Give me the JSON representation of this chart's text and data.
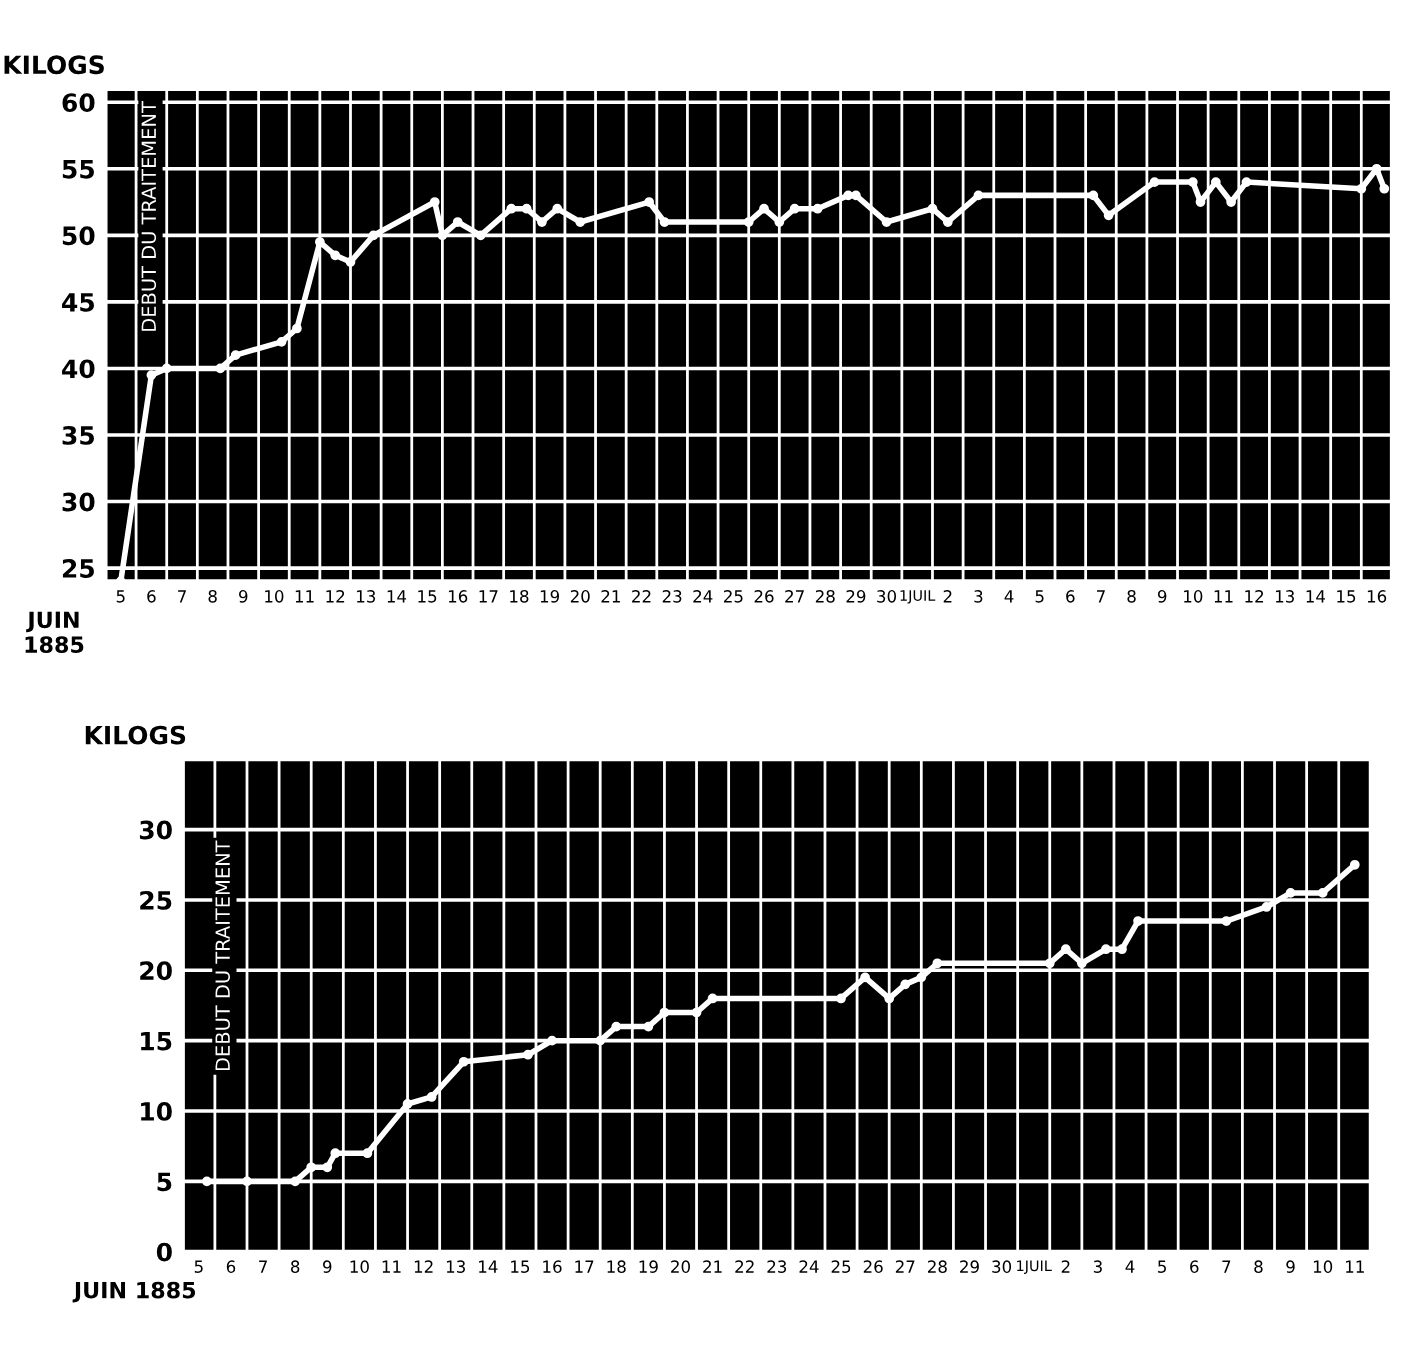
{
  "chart_data": [
    {
      "type": "line",
      "xlabel": "JUIN\n1885",
      "ylabel": "KILOGS",
      "annotations": [
        "DEBUT DU TRAITEMENT"
      ],
      "grid": true,
      "marker": "circle",
      "line_style": "solid",
      "x": [
        "1885-06-05T12:00",
        "1885-06-06T12:00",
        "1885-06-07T00:00",
        "1885-06-08T18:00",
        "1885-06-09T06:00",
        "1885-06-10T18:00",
        "1885-06-11T06:00",
        "1885-06-12T00:00",
        "1885-06-12T12:00",
        "1885-06-13T00:00",
        "1885-06-13T18:00",
        "1885-06-15T18:00",
        "1885-06-16T00:00",
        "1885-06-16T12:00",
        "1885-06-17T06:00",
        "1885-06-18T06:00",
        "1885-06-18T18:00",
        "1885-06-19T06:00",
        "1885-06-19T18:00",
        "1885-06-20T12:00",
        "1885-06-22T18:00",
        "1885-06-23T06:00",
        "1885-06-26T00:00",
        "1885-06-26T12:00",
        "1885-06-27T00:00",
        "1885-06-27T12:00",
        "1885-06-28T06:00",
        "1885-06-29T06:00",
        "1885-06-29T12:00",
        "1885-06-30T12:00",
        "1885-07-02T00:00",
        "1885-07-02T12:00",
        "1885-07-03T12:00",
        "1885-07-07T06:00",
        "1885-07-07T18:00",
        "1885-07-09T06:00",
        "1885-07-10T12:00",
        "1885-07-10T18:00",
        "1885-07-11T06:00",
        "1885-07-11T18:00",
        "1885-07-12T06:00",
        "1885-07-16T00:00",
        "1885-07-16T12:00",
        "1885-07-16T18:00"
      ],
      "series": [
        {
          "color": "#ffffff",
          "values": [
            24,
            39.5,
            40,
            40,
            41,
            42,
            43,
            49.5,
            48.5,
            48,
            50,
            52.5,
            50,
            51,
            50,
            52,
            52,
            51,
            52,
            51,
            52.5,
            51,
            51,
            52,
            51,
            52,
            52,
            53,
            53,
            51,
            52,
            51,
            53,
            53,
            51.5,
            54,
            54,
            52.5,
            54,
            52.5,
            54,
            53.5,
            55,
            53.5
          ]
        }
      ],
      "xlim": [
        "1885-06-05T00:00",
        "1885-07-17T00:00"
      ],
      "ylim": [
        24,
        61
      ],
      "yticks": [
        25,
        30,
        35,
        40,
        45,
        50,
        55,
        60
      ],
      "xticks": [
        {
          "value": "1885-06-05T12:00",
          "label": "5"
        },
        {
          "value": "1885-06-06T12:00",
          "label": "6"
        },
        {
          "value": "1885-06-07T12:00",
          "label": "7"
        },
        {
          "value": "1885-06-08T12:00",
          "label": "8"
        },
        {
          "value": "1885-06-09T12:00",
          "label": "9"
        },
        {
          "value": "1885-06-10T12:00",
          "label": "10"
        },
        {
          "value": "1885-06-11T12:00",
          "label": "11"
        },
        {
          "value": "1885-06-12T12:00",
          "label": "12"
        },
        {
          "value": "1885-06-13T12:00",
          "label": "13"
        },
        {
          "value": "1885-06-14T12:00",
          "label": "14"
        },
        {
          "value": "1885-06-15T12:00",
          "label": "15"
        },
        {
          "value": "1885-06-16T12:00",
          "label": "16"
        },
        {
          "value": "1885-06-17T12:00",
          "label": "17"
        },
        {
          "value": "1885-06-18T12:00",
          "label": "18"
        },
        {
          "value": "1885-06-19T12:00",
          "label": "19"
        },
        {
          "value": "1885-06-20T12:00",
          "label": "20"
        },
        {
          "value": "1885-06-21T12:00",
          "label": "21"
        },
        {
          "value": "1885-06-22T12:00",
          "label": "22"
        },
        {
          "value": "1885-06-23T12:00",
          "label": "23"
        },
        {
          "value": "1885-06-24T12:00",
          "label": "24"
        },
        {
          "value": "1885-06-25T12:00",
          "label": "25"
        },
        {
          "value": "1885-06-26T12:00",
          "label": "26"
        },
        {
          "value": "1885-06-27T12:00",
          "label": "27"
        },
        {
          "value": "1885-06-28T12:00",
          "label": "28"
        },
        {
          "value": "1885-06-29T12:00",
          "label": "29"
        },
        {
          "value": "1885-06-30T12:00",
          "label": "30"
        },
        {
          "value": "1885-07-01T12:00",
          "label": "1JUIL"
        },
        {
          "value": "1885-07-02T12:00",
          "label": "2"
        },
        {
          "value": "1885-07-03T12:00",
          "label": "3"
        },
        {
          "value": "1885-07-04T12:00",
          "label": "4"
        },
        {
          "value": "1885-07-05T12:00",
          "label": "5"
        },
        {
          "value": "1885-07-06T12:00",
          "label": "6"
        },
        {
          "value": "1885-07-07T12:00",
          "label": "7"
        },
        {
          "value": "1885-07-08T12:00",
          "label": "8"
        },
        {
          "value": "1885-07-09T12:00",
          "label": "9"
        },
        {
          "value": "1885-07-10T12:00",
          "label": "10"
        },
        {
          "value": "1885-07-11T12:00",
          "label": "11"
        },
        {
          "value": "1885-07-12T12:00",
          "label": "12"
        },
        {
          "value": "1885-07-13T12:00",
          "label": "13"
        },
        {
          "value": "1885-07-14T12:00",
          "label": "14"
        },
        {
          "value": "1885-07-15T12:00",
          "label": "15"
        },
        {
          "value": "1885-07-16T12:00",
          "label": "16"
        }
      ]
    },
    {
      "type": "line",
      "xlabel": "JUIN 1885",
      "ylabel": "KILOGS",
      "annotations": [
        "DEBUT DU TRAITEMENT"
      ],
      "grid": true,
      "marker": "circle",
      "line_style": "solid",
      "x": [
        "1885-06-05T18:00",
        "1885-06-07T00:00",
        "1885-06-08T12:00",
        "1885-06-09T00:00",
        "1885-06-09T12:00",
        "1885-06-09T18:00",
        "1885-06-10T18:00",
        "1885-06-12T00:00",
        "1885-06-12T18:00",
        "1885-06-13T18:00",
        "1885-06-15T18:00",
        "1885-06-16T12:00",
        "1885-06-18T00:00",
        "1885-06-18T12:00",
        "1885-06-19T12:00",
        "1885-06-20T00:00",
        "1885-06-21T00:00",
        "1885-06-21T12:00",
        "1885-06-25T12:00",
        "1885-06-26T06:00",
        "1885-06-27T00:00",
        "1885-06-27T12:00",
        "1885-06-28T00:00",
        "1885-06-28T12:00",
        "1885-07-02T00:00",
        "1885-07-02T12:00",
        "1885-07-03T00:00",
        "1885-07-03T18:00",
        "1885-07-04T06:00",
        "1885-07-04T18:00",
        "1885-07-07T12:00",
        "1885-07-08T18:00",
        "1885-07-09T12:00",
        "1885-07-10T12:00",
        "1885-07-11T12:00"
      ],
      "series": [
        {
          "color": "#ffffff",
          "values": [
            5,
            5,
            5,
            6,
            6,
            7,
            7,
            10.5,
            11,
            13.5,
            14,
            15,
            15,
            16,
            16,
            17,
            17,
            18,
            18,
            19.5,
            18,
            19,
            19.5,
            20.5,
            20.5,
            21.5,
            20.5,
            21.5,
            21.5,
            23.5,
            23.5,
            24.5,
            25.5,
            25.5,
            27.5
          ]
        }
      ],
      "xlim": [
        "1885-06-05T00:00",
        "1885-07-12T00:00"
      ],
      "ylim": [
        0,
        35
      ],
      "yticks": [
        0,
        5,
        10,
        15,
        20,
        25,
        30
      ],
      "xticks": [
        {
          "value": "1885-06-05T12:00",
          "label": "5"
        },
        {
          "value": "1885-06-06T12:00",
          "label": "6"
        },
        {
          "value": "1885-06-07T12:00",
          "label": "7"
        },
        {
          "value": "1885-06-08T12:00",
          "label": "8"
        },
        {
          "value": "1885-06-09T12:00",
          "label": "9"
        },
        {
          "value": "1885-06-10T12:00",
          "label": "10"
        },
        {
          "value": "1885-06-11T12:00",
          "label": "11"
        },
        {
          "value": "1885-06-12T12:00",
          "label": "12"
        },
        {
          "value": "1885-06-13T12:00",
          "label": "13"
        },
        {
          "value": "1885-06-14T12:00",
          "label": "14"
        },
        {
          "value": "1885-06-15T12:00",
          "label": "15"
        },
        {
          "value": "1885-06-16T12:00",
          "label": "16"
        },
        {
          "value": "1885-06-17T12:00",
          "label": "17"
        },
        {
          "value": "1885-06-18T12:00",
          "label": "18"
        },
        {
          "value": "1885-06-19T12:00",
          "label": "19"
        },
        {
          "value": "1885-06-20T12:00",
          "label": "20"
        },
        {
          "value": "1885-06-21T12:00",
          "label": "21"
        },
        {
          "value": "1885-06-22T12:00",
          "label": "22"
        },
        {
          "value": "1885-06-23T12:00",
          "label": "23"
        },
        {
          "value": "1885-06-24T12:00",
          "label": "24"
        },
        {
          "value": "1885-06-25T12:00",
          "label": "25"
        },
        {
          "value": "1885-06-26T12:00",
          "label": "26"
        },
        {
          "value": "1885-06-27T12:00",
          "label": "27"
        },
        {
          "value": "1885-06-28T12:00",
          "label": "28"
        },
        {
          "value": "1885-06-29T12:00",
          "label": "29"
        },
        {
          "value": "1885-06-30T12:00",
          "label": "30"
        },
        {
          "value": "1885-07-01T12:00",
          "label": "1JUIL"
        },
        {
          "value": "1885-07-02T12:00",
          "label": "2"
        },
        {
          "value": "1885-07-03T12:00",
          "label": "3"
        },
        {
          "value": "1885-07-04T12:00",
          "label": "4"
        },
        {
          "value": "1885-07-05T12:00",
          "label": "5"
        },
        {
          "value": "1885-07-06T12:00",
          "label": "6"
        },
        {
          "value": "1885-07-07T12:00",
          "label": "7"
        },
        {
          "value": "1885-07-08T12:00",
          "label": "8"
        },
        {
          "value": "1885-07-09T12:00",
          "label": "9"
        },
        {
          "value": "1885-07-10T12:00",
          "label": "10"
        },
        {
          "value": "1885-07-11T12:00",
          "label": "11"
        }
      ]
    }
  ]
}
